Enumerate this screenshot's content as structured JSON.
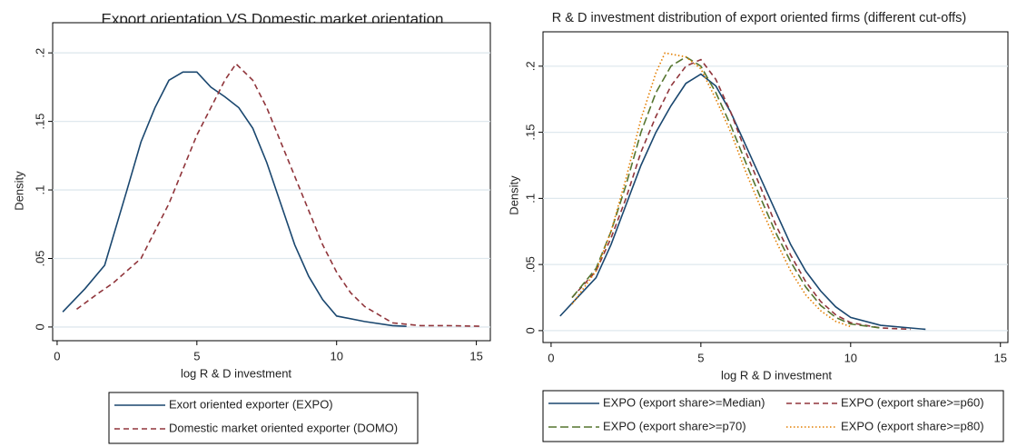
{
  "chart_data": [
    {
      "type": "line",
      "title": "Export orientation VS Domestic market orientation",
      "xlabel": "log R & D investment",
      "ylabel": "Density",
      "xlim": [
        -0.16,
        15.5
      ],
      "ylim": [
        -0.01,
        0.222
      ],
      "xticks": [
        0,
        5,
        10,
        15
      ],
      "yticks": [
        0,
        {
          "value": 0.05,
          "label": ".05"
        },
        {
          "value": 0.1,
          "label": ".1"
        },
        {
          "value": 0.15,
          "label": ".15"
        },
        {
          "value": 0.2,
          "label": ".2"
        }
      ],
      "grid": true,
      "legend": "bottom",
      "series": [
        {
          "name": "Exort oriented exporter (EXPO)",
          "color": "#1a476f",
          "dash": "solid",
          "x": [
            0.2,
            1,
            1.7,
            2.5,
            3,
            3.5,
            4,
            4.5,
            5,
            5.5,
            6,
            6.5,
            7,
            7.5,
            8,
            8.5,
            9,
            9.5,
            10,
            11,
            12,
            12.5
          ],
          "values": [
            0.011,
            0.028,
            0.045,
            0.1,
            0.135,
            0.16,
            0.18,
            0.186,
            0.186,
            0.175,
            0.168,
            0.16,
            0.145,
            0.12,
            0.09,
            0.06,
            0.037,
            0.02,
            0.008,
            0.004,
            0.001,
            0.0005
          ]
        },
        {
          "name": "Domestic market oriented exporter (DOMO)",
          "color": "#90353b",
          "dash": "dash",
          "x": [
            0.7,
            1.5,
            2,
            3,
            4,
            4.5,
            5,
            5.5,
            6,
            6.4,
            7,
            7.5,
            8,
            8.5,
            9,
            9.5,
            10,
            10.5,
            11,
            12,
            13,
            14,
            15.2
          ],
          "values": [
            0.013,
            0.025,
            0.032,
            0.05,
            0.09,
            0.115,
            0.14,
            0.16,
            0.18,
            0.192,
            0.18,
            0.16,
            0.135,
            0.11,
            0.085,
            0.06,
            0.04,
            0.025,
            0.015,
            0.003,
            0.001,
            0.001,
            0.0005
          ]
        }
      ]
    },
    {
      "type": "line",
      "title": "R & D investment distribution of export oriented firms (different cut-offs)",
      "xlabel": "log R & D investment",
      "ylabel": "Density",
      "xlim": [
        -0.27,
        15.25
      ],
      "ylim": [
        -0.009,
        0.226
      ],
      "xticks": [
        0,
        5,
        10,
        15
      ],
      "yticks": [
        0,
        {
          "value": 0.05,
          "label": ".05"
        },
        {
          "value": 0.1,
          "label": ".1"
        },
        {
          "value": 0.15,
          "label": ".15"
        },
        {
          "value": 0.2,
          "label": ".2"
        }
      ],
      "grid": true,
      "legend": "bottom",
      "series": [
        {
          "name": "EXPO (export share>=Median)",
          "color": "#1a476f",
          "dash": "solid",
          "x": [
            0.3,
            1,
            1.5,
            2,
            2.5,
            3,
            3.5,
            4,
            4.5,
            5,
            5.5,
            6,
            6.5,
            7,
            7.5,
            8,
            8.5,
            9,
            9.5,
            10,
            11,
            12,
            12.5
          ],
          "values": [
            0.011,
            0.028,
            0.04,
            0.065,
            0.095,
            0.125,
            0.15,
            0.17,
            0.187,
            0.194,
            0.185,
            0.165,
            0.14,
            0.115,
            0.09,
            0.065,
            0.045,
            0.03,
            0.018,
            0.01,
            0.004,
            0.002,
            0.001
          ]
        },
        {
          "name": "EXPO (export share>=p60)",
          "color": "#90353b",
          "dash": "dash",
          "x": [
            0.7,
            1.5,
            2,
            2.5,
            3,
            3.5,
            4,
            4.5,
            5,
            5.5,
            6,
            6.5,
            7,
            7.5,
            8,
            8.5,
            9,
            9.5,
            10,
            11,
            12
          ],
          "values": [
            0.025,
            0.045,
            0.07,
            0.1,
            0.135,
            0.162,
            0.185,
            0.2,
            0.205,
            0.19,
            0.165,
            0.135,
            0.108,
            0.08,
            0.057,
            0.037,
            0.022,
            0.012,
            0.006,
            0.002,
            0.001
          ]
        },
        {
          "name": "EXPO (export share>=p70)",
          "color": "#55752f",
          "dash": "longdash",
          "x": [
            0.7,
            1.5,
            2,
            2.5,
            3,
            3.5,
            4,
            4.5,
            5,
            5.5,
            6,
            6.5,
            7,
            7.5,
            8,
            8.5,
            9,
            9.5,
            10,
            11
          ],
          "values": [
            0.025,
            0.047,
            0.075,
            0.11,
            0.15,
            0.18,
            0.2,
            0.207,
            0.2,
            0.18,
            0.155,
            0.127,
            0.1,
            0.074,
            0.052,
            0.033,
            0.019,
            0.01,
            0.005,
            0.002
          ]
        },
        {
          "name": "EXPO (export share>=p80)",
          "color": "#e37e00",
          "dash": "dot",
          "x": [
            0.7,
            1.5,
            2,
            2.5,
            3,
            3.5,
            3.8,
            4.5,
            5,
            5.5,
            6,
            6.5,
            7,
            7.5,
            8,
            8.5,
            9,
            9.5,
            10
          ],
          "values": [
            0.02,
            0.045,
            0.075,
            0.115,
            0.16,
            0.195,
            0.21,
            0.207,
            0.198,
            0.175,
            0.15,
            0.12,
            0.093,
            0.068,
            0.045,
            0.027,
            0.015,
            0.007,
            0.003
          ]
        }
      ]
    }
  ]
}
